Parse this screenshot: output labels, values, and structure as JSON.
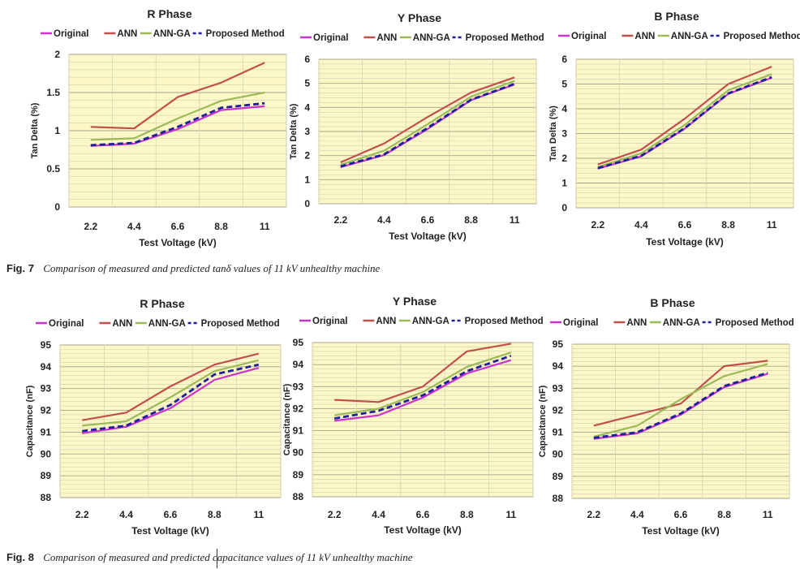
{
  "captions": {
    "fig7_label": "Fig. 7",
    "fig7_text": "Comparison of measured and predicted tanδ values of 11 kV unhealthy machine",
    "fig8_label": "Fig. 8",
    "fig8_text": "Comparison of measured and predicted capacitance values of 11 kV unhealthy machine"
  },
  "colors": {
    "plot_bg": "#fbf7c6",
    "grid": "#d4d0b4",
    "Original": "#cc33cc",
    "ANN": "#c0504d",
    "ANN-GA": "#9bbb59",
    "Proposed Method": "#1f1f99"
  },
  "chart_data": [
    {
      "type": "line",
      "title": "R Phase",
      "xlabel": "Test Voltage (kV)",
      "ylabel": "Tan Delta (%)",
      "categories": [
        "2.2",
        "4.4",
        "6.6",
        "8.8",
        "11"
      ],
      "ylim": [
        0,
        2
      ],
      "yticks": [
        "0",
        "0.5",
        "1",
        "1.5",
        "2"
      ],
      "grid": true,
      "legend_position": "top",
      "series": [
        {
          "name": "Original",
          "values": [
            0.8,
            0.83,
            1.02,
            1.27,
            1.32
          ]
        },
        {
          "name": "ANN",
          "values": [
            1.05,
            1.03,
            1.44,
            1.63,
            1.89
          ]
        },
        {
          "name": "ANN-GA",
          "values": [
            0.88,
            0.9,
            1.16,
            1.39,
            1.5
          ]
        },
        {
          "name": "Proposed Method",
          "values": [
            0.81,
            0.84,
            1.05,
            1.3,
            1.36
          ]
        }
      ]
    },
    {
      "type": "line",
      "title": "Y Phase",
      "xlabel": "Test Voltage (kV)",
      "ylabel": "Tan Delta (%)",
      "categories": [
        "2.2",
        "4.4",
        "6.6",
        "8.8",
        "11"
      ],
      "ylim": [
        0,
        6
      ],
      "yticks": [
        "0",
        "1",
        "2",
        "3",
        "4",
        "5",
        "6"
      ],
      "grid": true,
      "legend_position": "top",
      "series": [
        {
          "name": "Original",
          "values": [
            1.52,
            2.02,
            3.1,
            4.3,
            4.95
          ]
        },
        {
          "name": "ANN",
          "values": [
            1.72,
            2.5,
            3.6,
            4.62,
            5.25
          ]
        },
        {
          "name": "ANN-GA",
          "values": [
            1.62,
            2.2,
            3.3,
            4.45,
            5.1
          ]
        },
        {
          "name": "Proposed Method",
          "values": [
            1.55,
            2.05,
            3.15,
            4.32,
            4.98
          ]
        }
      ]
    },
    {
      "type": "line",
      "title": "B Phase",
      "xlabel": "Test Voltage (kV)",
      "ylabel": "Tan Delta (%)",
      "categories": [
        "2.2",
        "4.4",
        "6.6",
        "8.8",
        "11"
      ],
      "ylim": [
        0,
        6
      ],
      "yticks": [
        "0",
        "1",
        "2",
        "3",
        "4",
        "5",
        "6"
      ],
      "grid": true,
      "legend_position": "top",
      "series": [
        {
          "name": "Original",
          "values": [
            1.58,
            2.08,
            3.2,
            4.6,
            5.25
          ]
        },
        {
          "name": "ANN",
          "values": [
            1.75,
            2.35,
            3.6,
            5.0,
            5.7
          ]
        },
        {
          "name": "ANN-GA",
          "values": [
            1.65,
            2.2,
            3.35,
            4.75,
            5.4
          ]
        },
        {
          "name": "Proposed Method",
          "values": [
            1.6,
            2.1,
            3.22,
            4.62,
            5.28
          ]
        }
      ]
    },
    {
      "type": "line",
      "title": "R Phase",
      "xlabel": "Test Voltage (kV)",
      "ylabel": "Capacitance (nF)",
      "categories": [
        "2.2",
        "4.4",
        "6.6",
        "8.8",
        "11"
      ],
      "ylim": [
        88,
        95
      ],
      "yticks": [
        "88",
        "89",
        "90",
        "91",
        "92",
        "93",
        "94",
        "95"
      ],
      "grid": true,
      "legend_position": "top",
      "series": [
        {
          "name": "Original",
          "values": [
            90.95,
            91.25,
            92.1,
            93.4,
            93.95
          ]
        },
        {
          "name": "ANN",
          "values": [
            91.55,
            91.9,
            93.1,
            94.1,
            94.6
          ]
        },
        {
          "name": "ANN-GA",
          "values": [
            91.3,
            91.5,
            92.6,
            93.8,
            94.3
          ]
        },
        {
          "name": "Proposed Method",
          "values": [
            91.05,
            91.3,
            92.25,
            93.65,
            94.1
          ]
        }
      ]
    },
    {
      "type": "line",
      "title": "Y Phase",
      "xlabel": "Test Voltage (kV)",
      "ylabel": "Capacitance (nF)",
      "categories": [
        "2.2",
        "4.4",
        "6.6",
        "8.8",
        "11"
      ],
      "ylim": [
        88,
        95
      ],
      "yticks": [
        "88",
        "89",
        "90",
        "91",
        "92",
        "93",
        "94",
        "95"
      ],
      "grid": true,
      "legend_position": "top",
      "series": [
        {
          "name": "Original",
          "values": [
            91.45,
            91.7,
            92.5,
            93.6,
            94.2
          ]
        },
        {
          "name": "ANN",
          "values": [
            92.4,
            92.3,
            93.0,
            94.6,
            94.95
          ]
        },
        {
          "name": "ANN-GA",
          "values": [
            91.7,
            92.0,
            92.75,
            93.9,
            94.55
          ]
        },
        {
          "name": "Proposed Method",
          "values": [
            91.55,
            91.9,
            92.6,
            93.7,
            94.4
          ]
        }
      ]
    },
    {
      "type": "line",
      "title": "B Phase",
      "xlabel": "Test Voltage (kV)",
      "ylabel": "Capacitance (nF)",
      "categories": [
        "2.2",
        "4.4",
        "6.6",
        "8.8",
        "11"
      ],
      "ylim": [
        88,
        95
      ],
      "yticks": [
        "88",
        "89",
        "90",
        "91",
        "92",
        "93",
        "94",
        "95"
      ],
      "grid": true,
      "legend_position": "top",
      "series": [
        {
          "name": "Original",
          "values": [
            90.7,
            90.95,
            91.8,
            93.05,
            93.65
          ]
        },
        {
          "name": "ANN",
          "values": [
            91.3,
            91.8,
            92.3,
            94.0,
            94.25
          ]
        },
        {
          "name": "ANN-GA",
          "values": [
            90.8,
            91.3,
            92.5,
            93.55,
            94.1
          ]
        },
        {
          "name": "Proposed Method",
          "values": [
            90.75,
            91.0,
            91.85,
            93.1,
            93.7
          ]
        }
      ]
    }
  ]
}
